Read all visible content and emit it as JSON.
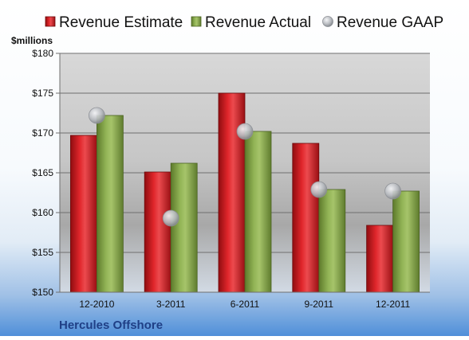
{
  "chart_data": {
    "type": "bar",
    "company": "Hercules Offshore",
    "ylabel": "$millions",
    "ylim": [
      150,
      180
    ],
    "yticks": [
      150,
      155,
      160,
      165,
      170,
      175,
      180
    ],
    "ytick_labels": [
      "$150",
      "$155",
      "$160",
      "$165",
      "$170",
      "$175",
      "$180"
    ],
    "categories": [
      "12-2010",
      "3-2011",
      "6-2011",
      "9-2011",
      "12-2011"
    ],
    "series": [
      {
        "name": "Revenue Estimate",
        "kind": "bar",
        "color": "#d9171c",
        "values": [
          169.7,
          165.1,
          175.0,
          168.7,
          158.4
        ]
      },
      {
        "name": "Revenue Actual",
        "kind": "bar",
        "color": "#8aab4a",
        "values": [
          172.2,
          166.2,
          170.2,
          162.9,
          162.7
        ]
      },
      {
        "name": "Revenue GAAP",
        "kind": "marker",
        "color": "#b9bcc2",
        "values": [
          172.2,
          159.3,
          170.2,
          162.9,
          162.7
        ]
      }
    ],
    "legend_position": "top",
    "grid": true
  }
}
